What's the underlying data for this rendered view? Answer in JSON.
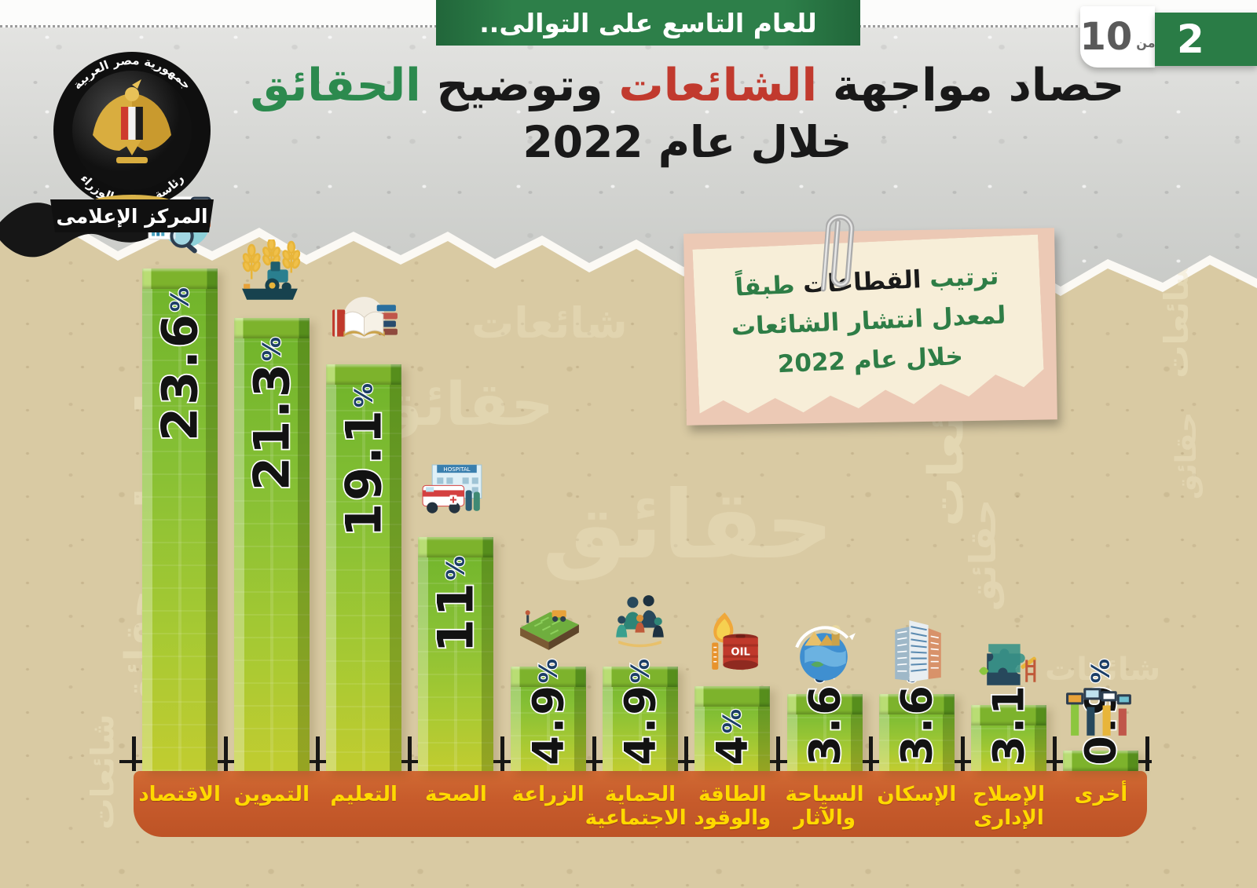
{
  "header": {
    "banner_label": "للعام التاسع على التوالى..",
    "pager": {
      "current": "2",
      "separator": "من",
      "total": "10"
    }
  },
  "logo": {
    "ring_top": "جمهورية مصر العربية",
    "ring_bottom": "رئاسة مجلس الوزراء",
    "ribbon": "المركز الإعلامى"
  },
  "title": {
    "part1": "حصاد مواجهة",
    "part2": "الشائعات",
    "part3": "وتوضيح",
    "part4": "الحقائق",
    "line2": "خلال عام 2022"
  },
  "note": {
    "line1_a": "ترتيب",
    "line1_b": "القطاعات",
    "line1_c": "طبقاً",
    "line2": "لمعدل انتشار الشائعات",
    "line3": "خلال عام 2022"
  },
  "watermarks": {
    "rumors": "شائعات",
    "facts": "حقائق"
  },
  "colors": {
    "banner_green": "#2d7f49",
    "rumor_red": "#c13a2e",
    "fact_green": "#2c8a4e",
    "bar_green": "#8cc63f",
    "axis_orange": "#c75b2b",
    "category_label_yellow": "#ffd900",
    "percent_navy": "#1c3e66"
  },
  "chart_data": {
    "type": "bar",
    "title": "حصاد مواجهة الشائعات وتوضيح الحقائق خلال عام 2022",
    "note": "ترتيب القطاعات طبقاً لمعدل انتشار الشائعات خلال عام 2022",
    "unit": "%",
    "categories": [
      "الاقتصاد",
      "التموين",
      "التعليم",
      "الصحة",
      "الزراعة",
      "الحماية الاجتماعية",
      "الطاقة والوقود",
      "السياحة والآثار",
      "الإسكان",
      "الإصلاح الإدارى",
      "أخرى"
    ],
    "values": [
      23.6,
      21.3,
      19.1,
      11,
      4.9,
      4.9,
      4,
      3.6,
      3.6,
      3.1,
      0.9
    ],
    "value_labels": [
      "23.6",
      "21.3",
      "19.1",
      "11",
      "4.9",
      "4.9",
      "4",
      "3.6",
      "3.6",
      "3.1",
      "0.9"
    ],
    "icons": [
      "economy-analytics-icon",
      "supply-tractor-icon",
      "education-books-icon",
      "health-hospital-icon",
      "agriculture-field-icon",
      "social-protection-family-icon",
      "energy-oil-icon",
      "tourism-globe-icon",
      "housing-buildings-icon",
      "admin-reform-puzzle-icon",
      "other-devices-icon"
    ],
    "ylim": [
      0,
      24
    ],
    "legend": "none",
    "grid": "off"
  }
}
